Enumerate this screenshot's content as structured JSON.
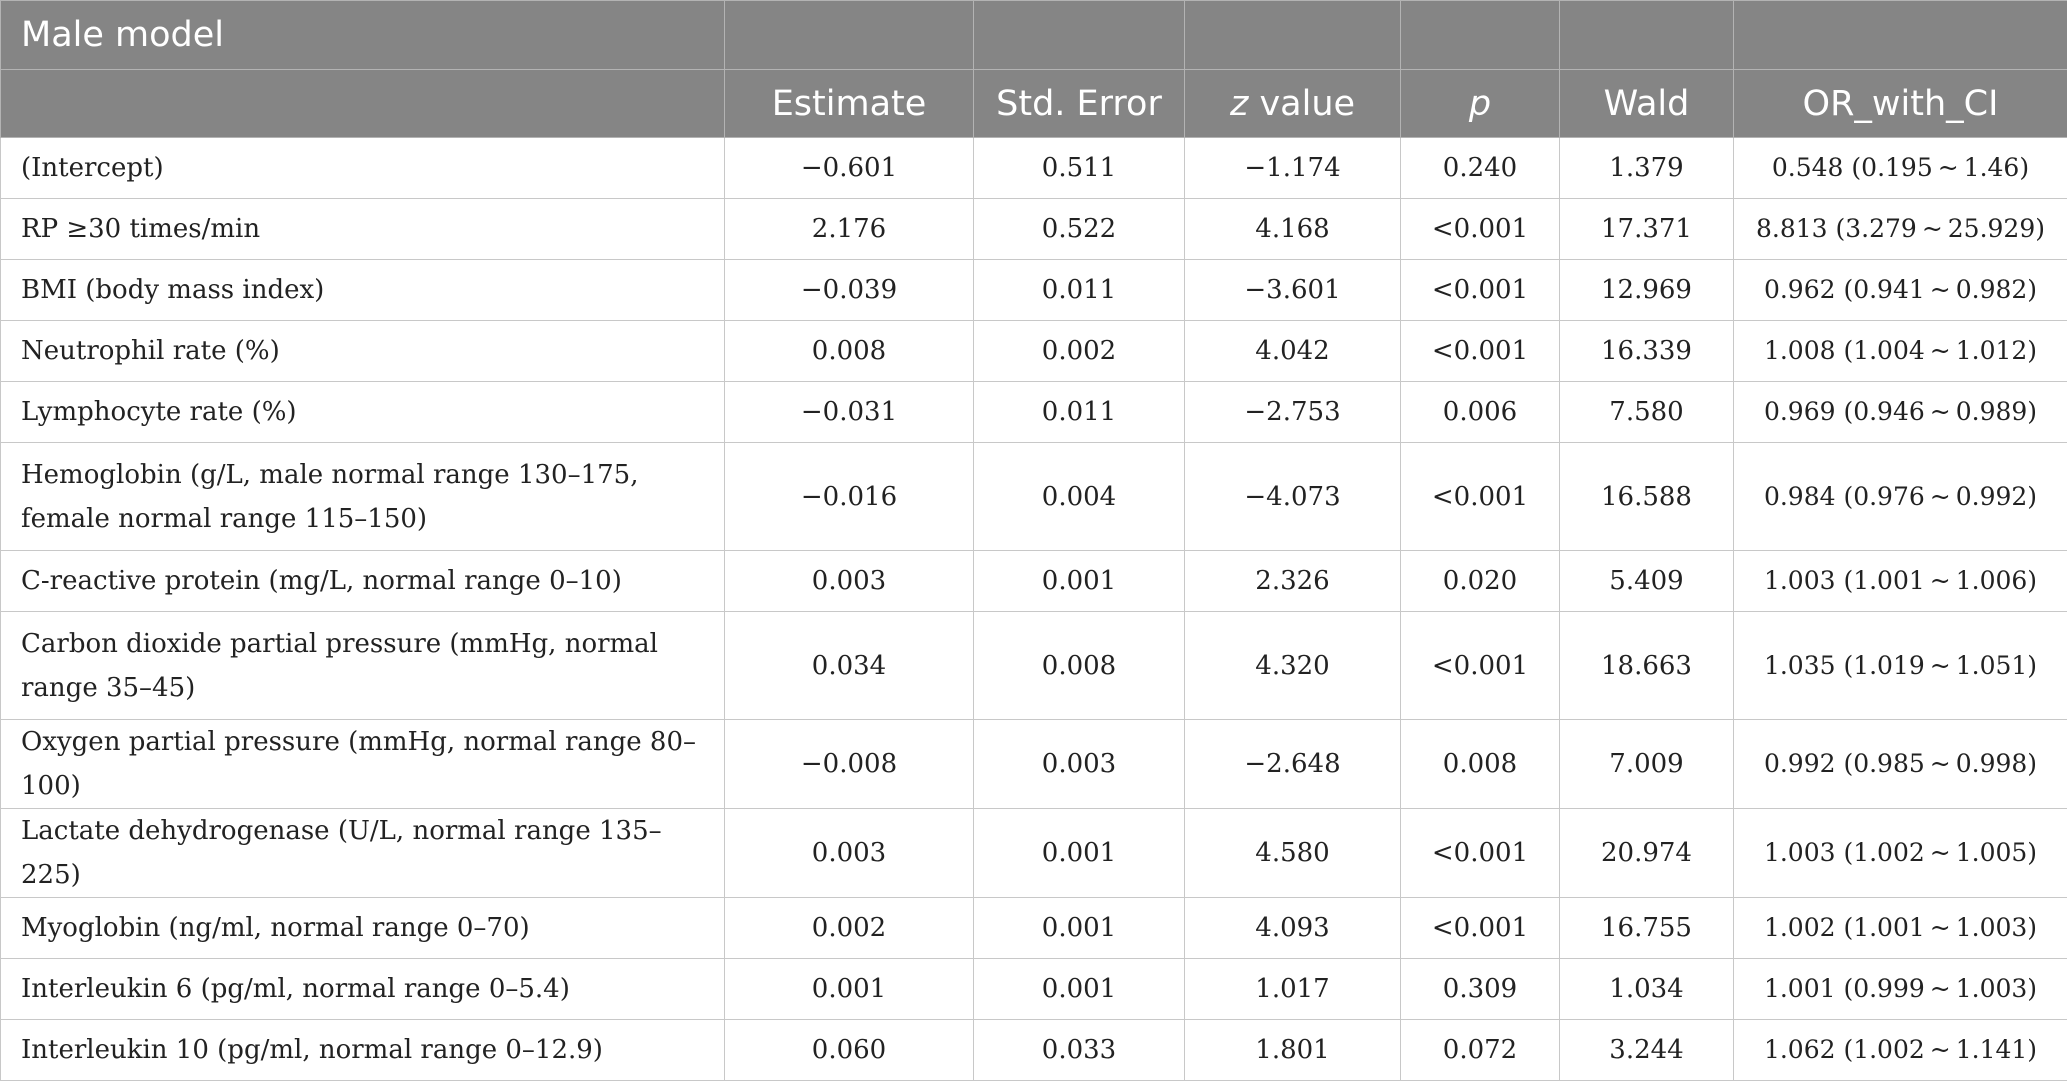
{
  "table": {
    "title": "Male model",
    "columns": [
      "",
      "Estimate",
      "Std. Error",
      "z value",
      "p",
      "Wald",
      "OR_with_CI"
    ],
    "z_header": {
      "italic": "z",
      "rest": " value"
    },
    "rows": [
      {
        "variable": "(Intercept)",
        "estimate": "−0.601",
        "std_error": "0.511",
        "z_value": "−1.174",
        "p": "0.240",
        "wald": "1.379",
        "or_ci": "0.548 (0.195 ~ 1.46)"
      },
      {
        "variable": "RP ≥30 times/min",
        "estimate": "2.176",
        "std_error": "0.522",
        "z_value": "4.168",
        "p": "<0.001",
        "wald": "17.371",
        "or_ci": "8.813 (3.279 ~ 25.929)"
      },
      {
        "variable": "BMI (body mass index)",
        "estimate": "−0.039",
        "std_error": "0.011",
        "z_value": "−3.601",
        "p": "<0.001",
        "wald": "12.969",
        "or_ci": "0.962 (0.941 ~ 0.982)"
      },
      {
        "variable": "Neutrophil rate (%)",
        "estimate": "0.008",
        "std_error": "0.002",
        "z_value": "4.042",
        "p": "<0.001",
        "wald": "16.339",
        "or_ci": "1.008 (1.004 ~ 1.012)"
      },
      {
        "variable": "Lymphocyte rate (%)",
        "estimate": "−0.031",
        "std_error": "0.011",
        "z_value": "−2.753",
        "p": "0.006",
        "wald": "7.580",
        "or_ci": "0.969 (0.946 ~ 0.989)"
      },
      {
        "variable": "Hemoglobin (g/L, male normal range 130–175, female normal range 115–150)",
        "estimate": "−0.016",
        "std_error": "0.004",
        "z_value": "−4.073",
        "p": "<0.001",
        "wald": "16.588",
        "or_ci": "0.984 (0.976 ~ 0.992)"
      },
      {
        "variable": "C-reactive protein (mg/L, normal range 0–10)",
        "estimate": "0.003",
        "std_error": "0.001",
        "z_value": "2.326",
        "p": "0.020",
        "wald": "5.409",
        "or_ci": "1.003 (1.001 ~ 1.006)"
      },
      {
        "variable": "Carbon dioxide partial pressure (mmHg, normal range 35–45)",
        "estimate": "0.034",
        "std_error": "0.008",
        "z_value": "4.320",
        "p": "<0.001",
        "wald": "18.663",
        "or_ci": "1.035 (1.019 ~ 1.051)"
      },
      {
        "variable": "Oxygen partial pressure (mmHg, normal range 80–100)",
        "estimate": "−0.008",
        "std_error": "0.003",
        "z_value": "−2.648",
        "p": "0.008",
        "wald": "7.009",
        "or_ci": "0.992 (0.985 ~ 0.998)"
      },
      {
        "variable": "Lactate dehydrogenase (U/L, normal range 135–225)",
        "estimate": "0.003",
        "std_error": "0.001",
        "z_value": "4.580",
        "p": "<0.001",
        "wald": "20.974",
        "or_ci": "1.003 (1.002 ~ 1.005)"
      },
      {
        "variable": "Myoglobin (ng/ml, normal range 0–70)",
        "estimate": "0.002",
        "std_error": "0.001",
        "z_value": "4.093",
        "p": "<0.001",
        "wald": "16.755",
        "or_ci": "1.002 (1.001 ~ 1.003)"
      },
      {
        "variable": "Interleukin 6 (pg/ml, normal range 0–5.4)",
        "estimate": "0.001",
        "std_error": "0.001",
        "z_value": "1.017",
        "p": "0.309",
        "wald": "1.034",
        "or_ci": "1.001 (0.999 ~ 1.003)"
      },
      {
        "variable": "Interleukin 10 (pg/ml, normal range 0–12.9)",
        "estimate": "0.060",
        "std_error": "0.033",
        "z_value": "1.801",
        "p": "0.072",
        "wald": "3.244",
        "or_ci": "1.062 (1.002 ~ 1.141)"
      }
    ]
  },
  "colors": {
    "header_bg": "#858585",
    "header_text": "#ffffff",
    "body_text": "#222222",
    "grid": "#c8c8c8"
  }
}
